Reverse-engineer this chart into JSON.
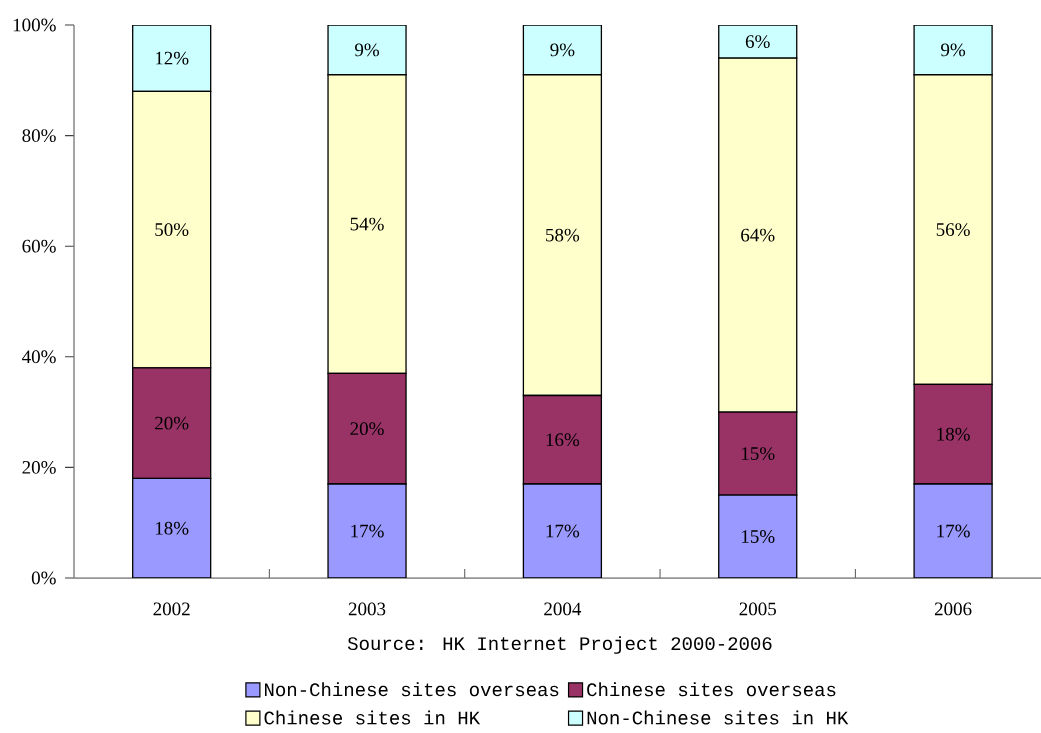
{
  "chart_data": {
    "type": "bar",
    "stacked": true,
    "categories": [
      "2002",
      "2003",
      "2004",
      "2005",
      "2006"
    ],
    "series": [
      {
        "name": "Non-Chinese sites overseas",
        "color": "#9999ff",
        "values": [
          18,
          17,
          17,
          15,
          17
        ],
        "value_labels": [
          "18%",
          "17%",
          "17%",
          "15%",
          "17%"
        ]
      },
      {
        "name": "Chinese sites overseas",
        "color": "#993366",
        "values": [
          20,
          20,
          16,
          15,
          18
        ],
        "value_labels": [
          "20%",
          "20%",
          "16%",
          "15%",
          "18%"
        ]
      },
      {
        "name": "Chinese sites in HK",
        "color": "#ffffcc",
        "values": [
          50,
          54,
          58,
          64,
          56
        ],
        "value_labels": [
          "50%",
          "54%",
          "58%",
          "64%",
          "56%"
        ]
      },
      {
        "name": "Non-Chinese sites in HK",
        "color": "#ccffff",
        "values": [
          12,
          9,
          9,
          6,
          9
        ],
        "value_labels": [
          "12%",
          "9%",
          "9%",
          "6%",
          "9%"
        ]
      }
    ],
    "ylim": [
      0,
      100
    ],
    "yticks": [
      {
        "value": 0,
        "label": "0%"
      },
      {
        "value": 20,
        "label": "20%"
      },
      {
        "value": 40,
        "label": "40%"
      },
      {
        "value": 60,
        "label": "60%"
      },
      {
        "value": 80,
        "label": "80%"
      },
      {
        "value": 100,
        "label": "100%"
      }
    ],
    "legend": "bottom",
    "annotations": [
      "Source: HK Internet Project 2000-2006"
    ]
  }
}
